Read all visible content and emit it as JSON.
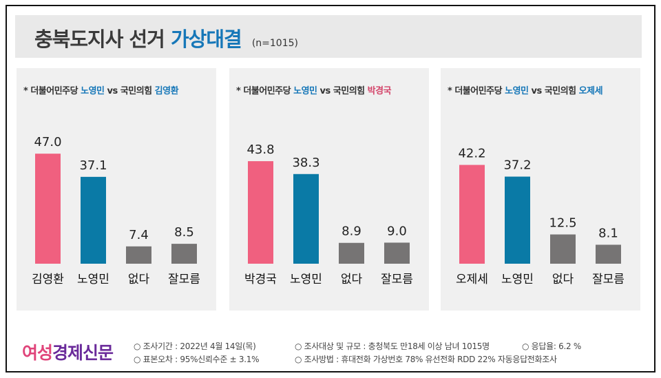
{
  "header": {
    "title_main": "충북도지사 선거",
    "title_accent": "가상대결",
    "sample": "(n=1015)"
  },
  "colors": {
    "primary_candidate": "#f0607f",
    "noyeongmin": "#0a7aa6",
    "other": "#767474",
    "accent_text": "#1677b8"
  },
  "panels": [
    {
      "prefix": "* 더불어민주당",
      "dem": "노영민",
      "vs": "vs 국민의힘",
      "ppp": "김영환"
    },
    {
      "prefix": "* 더불어민주당",
      "dem": "노영민",
      "vs": "vs 국민의힘",
      "ppp": "박경국"
    },
    {
      "prefix": "* 더불어민주당",
      "dem": "노영민",
      "vs": "vs 국민의힘",
      "ppp": "오제세"
    }
  ],
  "chart_data": [
    {
      "type": "bar",
      "categories": [
        "김영환",
        "노영민",
        "없다",
        "잘모름"
      ],
      "values": [
        47.0,
        37.1,
        7.4,
        8.5
      ],
      "labels": [
        "47.0",
        "37.1",
        "7.4",
        "8.5"
      ],
      "colors": [
        "#f0607f",
        "#0a7aa6",
        "#767474",
        "#767474"
      ],
      "ylim": [
        0,
        50
      ]
    },
    {
      "type": "bar",
      "categories": [
        "박경국",
        "노영민",
        "없다",
        "잘모름"
      ],
      "values": [
        43.8,
        38.3,
        8.9,
        9.0
      ],
      "labels": [
        "43.8",
        "38.3",
        "8.9",
        "9.0"
      ],
      "colors": [
        "#f0607f",
        "#0a7aa6",
        "#767474",
        "#767474"
      ],
      "ylim": [
        0,
        50
      ]
    },
    {
      "type": "bar",
      "categories": [
        "오제세",
        "노영민",
        "없다",
        "잘모름"
      ],
      "values": [
        42.2,
        37.2,
        12.5,
        8.1
      ],
      "labels": [
        "42.2",
        "37.2",
        "12.5",
        "8.1"
      ],
      "colors": [
        "#f0607f",
        "#0a7aa6",
        "#767474",
        "#767474"
      ],
      "ylim": [
        0,
        50
      ]
    }
  ],
  "footer": {
    "logo_part1": "여성",
    "logo_part2": "경제신문",
    "period": "○ 조사기간 : 2022년 4월 14일(목)",
    "target": "○ 조사대상 및 규모 : 충청북도 만18세 이상 남녀 1015명",
    "response": "○ 응답율: 6.2 %",
    "error": "○ 표본오차 : 95%신뢰수준 ± 3.1%",
    "method": "○ 조사방법 : 휴대전화 가상번호 78%  유선전화 RDD 22% 자동응답전화조사"
  }
}
